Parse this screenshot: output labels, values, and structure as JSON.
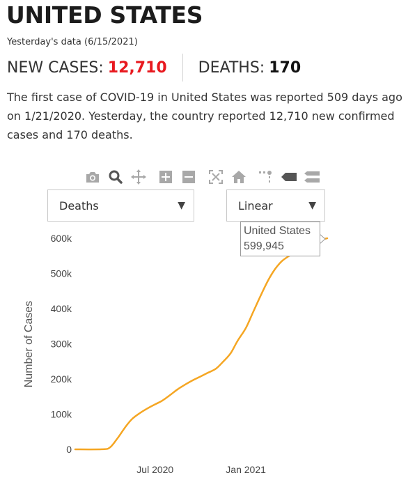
{
  "header": {
    "title": "UNITED STATES",
    "date_text": "Yesterday's data (6/15/2021)",
    "new_cases_label": "NEW CASES:",
    "new_cases_value": "12,710",
    "deaths_label": "DEATHS:",
    "deaths_value": "170"
  },
  "description": {
    "before": "The first case of ",
    "highlight": "COVID-19 in United States",
    "after": " was reported 509 days ago on 1/21/2020. Yesterday, the country reported 12,710 new confirmed cases and 170 deaths."
  },
  "toolbar": {
    "icons": [
      "camera-icon",
      "zoom-icon",
      "pan-icon",
      "zoom-in-icon",
      "zoom-out-icon",
      "autoscale-icon",
      "reset-axes-icon",
      "spike-lines-icon",
      "hover-closest-icon",
      "hover-compare-icon"
    ]
  },
  "controls": {
    "metric_select": "Deaths",
    "scale_select": "Linear"
  },
  "tooltip": {
    "series": "United States",
    "value": "599,945"
  },
  "colors": {
    "line": "#f5a623",
    "cases_red": "#e8191f"
  },
  "chart_data": {
    "type": "line",
    "title": "",
    "xlabel": "",
    "ylabel": "Number of Cases",
    "x_range": [
      "2020-01-21",
      "2021-06-15"
    ],
    "ylim": [
      0,
      600000
    ],
    "y_ticks": [
      0,
      100000,
      200000,
      300000,
      400000,
      500000,
      600000
    ],
    "y_tick_labels": [
      "0",
      "100k",
      "200k",
      "300k",
      "400k",
      "500k",
      "600k"
    ],
    "x_ticks": [
      "2020-07-01",
      "2021-01-01"
    ],
    "x_tick_labels": [
      "Jul 2020",
      "Jan 2021"
    ],
    "grid": false,
    "series": [
      {
        "name": "United States",
        "x": [
          "2020-01-21",
          "2020-03-15",
          "2020-03-31",
          "2020-04-15",
          "2020-05-01",
          "2020-05-15",
          "2020-06-01",
          "2020-06-15",
          "2020-07-01",
          "2020-07-15",
          "2020-08-01",
          "2020-08-15",
          "2020-09-01",
          "2020-09-15",
          "2020-10-01",
          "2020-10-15",
          "2020-11-01",
          "2020-11-15",
          "2020-12-01",
          "2020-12-15",
          "2021-01-01",
          "2021-01-15",
          "2021-02-01",
          "2021-02-15",
          "2021-03-01",
          "2021-03-15",
          "2021-04-01",
          "2021-04-15",
          "2021-05-01",
          "2021-05-15",
          "2021-06-01",
          "2021-06-15"
        ],
        "values": [
          0,
          200,
          5000,
          30000,
          62000,
          86000,
          104000,
          116000,
          128000,
          138000,
          155000,
          170000,
          185000,
          196000,
          207000,
          217000,
          229000,
          248000,
          273000,
          308000,
          345000,
          388000,
          440000,
          480000,
          512000,
          535000,
          552000,
          565000,
          578000,
          588000,
          595000,
          599945
        ]
      }
    ]
  }
}
